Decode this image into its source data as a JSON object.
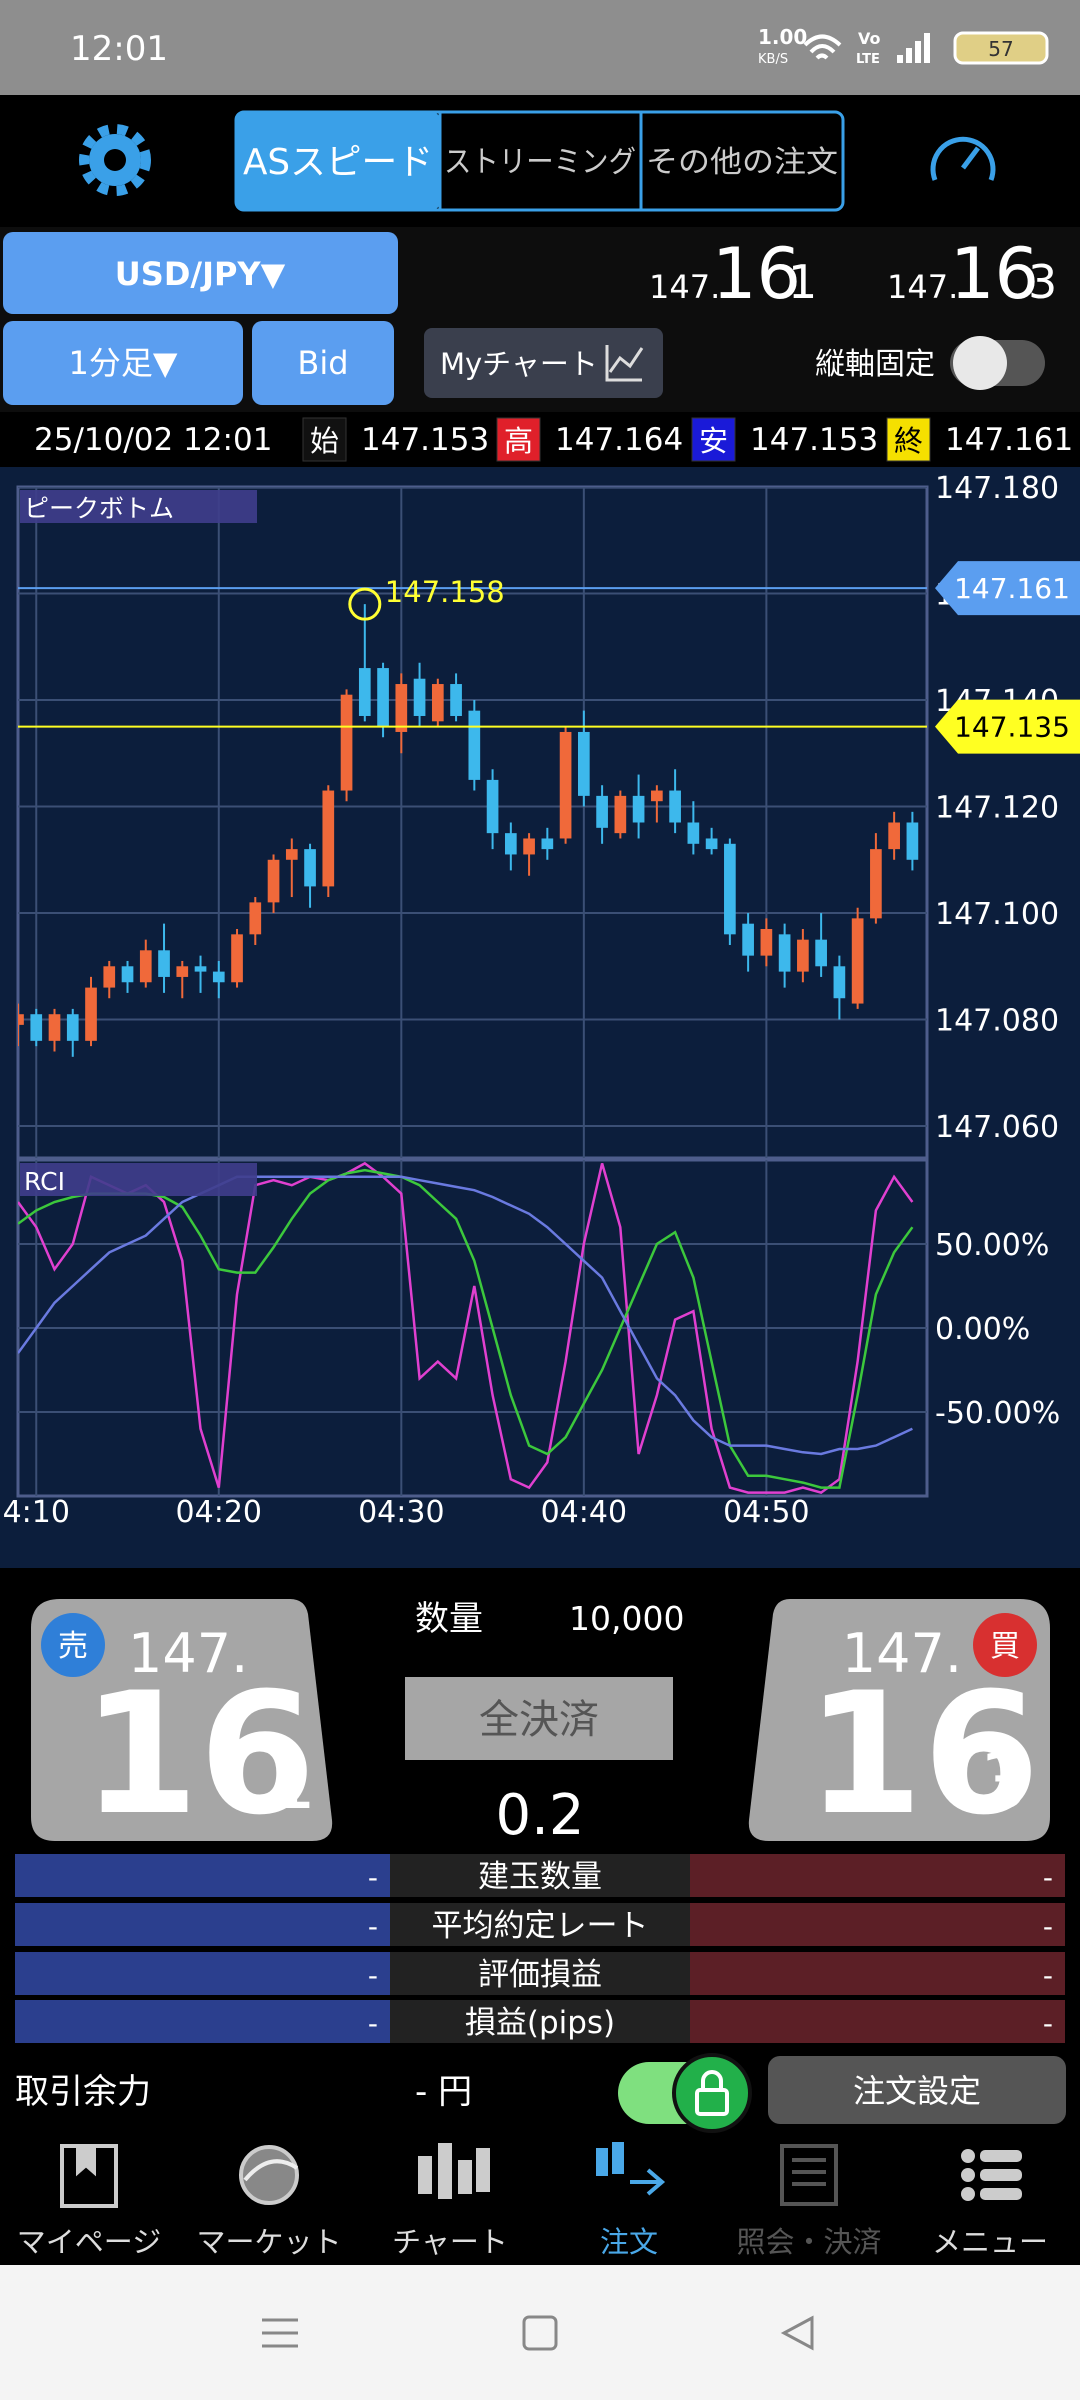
{
  "status_bar": {
    "time": "12:01",
    "speed": "1.00",
    "speed_unit": "KB/S",
    "volte": "Vo",
    "lte": "LTE",
    "battery": "57"
  },
  "tabs": [
    "ASスピード",
    "ストリーミング",
    "その他の注文"
  ],
  "pair": "USD/JPY▼",
  "bid_quote": {
    "prefix": "147.",
    "big": "16",
    "small": "1"
  },
  "ask_quote": {
    "prefix": "147.",
    "big": "16",
    "small": "3"
  },
  "controls": {
    "timeframe": "1分足▼",
    "price_type": "Bid",
    "my_chart": "Myチャート",
    "axis_lock": "縦軸固定"
  },
  "ohlc": {
    "datetime": "25/10/02 12:01",
    "items": [
      {
        "tag": "始",
        "value": "147.153"
      },
      {
        "tag": "高",
        "value": "147.164"
      },
      {
        "tag": "安",
        "value": "147.153"
      },
      {
        "tag": "終",
        "value": "147.161"
      }
    ]
  },
  "chart_data": [
    {
      "type": "candlestick",
      "title": "ピークボトム",
      "x": [
        9,
        10,
        11,
        12,
        13,
        14,
        15,
        16,
        17,
        18,
        19,
        20,
        21,
        22,
        23,
        24,
        25,
        26,
        27,
        28,
        29,
        30,
        31,
        32,
        33,
        34,
        35,
        36,
        37,
        38,
        39,
        40,
        41,
        42,
        43,
        44,
        45,
        46,
        47,
        48,
        49,
        50,
        51,
        52,
        53,
        54,
        55,
        56,
        57,
        58
      ],
      "open": [
        147.079,
        147.081,
        147.076,
        147.081,
        147.076,
        147.086,
        147.09,
        147.087,
        147.093,
        147.088,
        147.09,
        147.089,
        147.087,
        147.096,
        147.102,
        147.11,
        147.112,
        147.105,
        147.123,
        147.146,
        147.146,
        147.134,
        147.144,
        147.136,
        147.143,
        147.138,
        147.125,
        147.115,
        147.111,
        147.114,
        147.114,
        147.134,
        147.122,
        147.115,
        147.122,
        147.121,
        147.123,
        147.117,
        147.114,
        147.113,
        147.098,
        147.092,
        147.096,
        147.089,
        147.095,
        147.09,
        147.083,
        147.099,
        147.112,
        147.117
      ],
      "high": [
        147.083,
        147.082,
        147.082,
        147.082,
        147.088,
        147.091,
        147.091,
        147.095,
        147.098,
        147.091,
        147.092,
        147.091,
        147.097,
        147.103,
        147.111,
        147.114,
        147.113,
        147.124,
        147.142,
        147.158,
        147.147,
        147.145,
        147.147,
        147.144,
        147.145,
        147.14,
        147.127,
        147.117,
        147.115,
        147.116,
        147.135,
        147.138,
        147.124,
        147.123,
        147.126,
        147.124,
        147.127,
        147.121,
        147.116,
        147.114,
        147.1,
        147.099,
        147.098,
        147.097,
        147.1,
        147.092,
        147.101,
        147.115,
        147.119,
        147.119
      ],
      "low": [
        147.075,
        147.075,
        147.074,
        147.073,
        147.075,
        147.084,
        147.085,
        147.086,
        147.085,
        147.084,
        147.085,
        147.084,
        147.086,
        147.094,
        147.1,
        147.103,
        147.101,
        147.103,
        147.121,
        147.136,
        147.133,
        147.13,
        147.135,
        147.135,
        147.136,
        147.123,
        147.112,
        147.108,
        147.107,
        147.11,
        147.113,
        147.12,
        147.113,
        147.114,
        147.114,
        147.117,
        147.115,
        147.111,
        147.111,
        147.094,
        147.089,
        147.09,
        147.086,
        147.087,
        147.088,
        147.08,
        147.082,
        147.098,
        147.11,
        147.108
      ],
      "close": [
        147.081,
        147.076,
        147.081,
        147.076,
        147.086,
        147.09,
        147.087,
        147.093,
        147.088,
        147.09,
        147.089,
        147.087,
        147.096,
        147.102,
        147.11,
        147.112,
        147.105,
        147.123,
        147.141,
        147.137,
        147.135,
        147.143,
        147.137,
        147.143,
        147.137,
        147.125,
        147.115,
        147.111,
        147.114,
        147.112,
        147.134,
        147.122,
        147.116,
        147.122,
        147.117,
        147.123,
        147.117,
        147.113,
        147.112,
        147.096,
        147.092,
        147.097,
        147.089,
        147.095,
        147.09,
        147.084,
        147.099,
        147.112,
        147.117,
        147.11
      ],
      "up_color": "#f0693a",
      "down_color": "#3db8ec",
      "xlim": [
        9,
        58.8
      ],
      "ylim": [
        147.054,
        147.18
      ],
      "yticks": [
        {
          "value": 147.06,
          "label": "147.060"
        },
        {
          "value": 147.08,
          "label": "147.080"
        },
        {
          "value": 147.1,
          "label": "147.100"
        },
        {
          "value": 147.12,
          "label": "147.120"
        },
        {
          "value": 147.14,
          "label": "147.140"
        },
        {
          "value": 147.16,
          "label": "147.160"
        },
        {
          "value": 147.18,
          "label": "147.180"
        }
      ],
      "grid": true,
      "price_lines": [
        {
          "value": 147.161,
          "label": "147.161",
          "color": "#5b9ef0",
          "label_color": "#ffffff"
        },
        {
          "value": 147.135,
          "label": "147.135",
          "color": "#ffff22",
          "label_color": "#000000"
        }
      ],
      "peak": {
        "x": 28,
        "value": 147.158,
        "label": "147.158",
        "color": "#ffff33"
      }
    },
    {
      "type": "line",
      "title": "RCI",
      "x": [
        9,
        10,
        11,
        12,
        13,
        14,
        15,
        16,
        17,
        18,
        19,
        20,
        21,
        22,
        23,
        24,
        25,
        26,
        27,
        28,
        29,
        30,
        31,
        32,
        33,
        34,
        35,
        36,
        37,
        38,
        39,
        40,
        41,
        42,
        43,
        44,
        45,
        46,
        47,
        48,
        49,
        50,
        51,
        52,
        53,
        54,
        55,
        56,
        57,
        58
      ],
      "series": [
        {
          "color": "#e040d0",
          "values": [
            75,
            60,
            35,
            50,
            90,
            85,
            80,
            85,
            75,
            40,
            -60,
            -95,
            20,
            85,
            88,
            85,
            90,
            88,
            92,
            98,
            90,
            80,
            -30,
            -20,
            -30,
            25,
            -40,
            -90,
            -95,
            -80,
            -20,
            50,
            98,
            60,
            -75,
            -40,
            5,
            10,
            -60,
            -95,
            -98,
            -98,
            -98,
            -95,
            -98,
            -90,
            -20,
            70,
            90,
            75
          ]
        },
        {
          "color": "#3cc83c",
          "values": [
            62,
            70,
            75,
            78,
            80,
            80,
            80,
            80,
            78,
            72,
            55,
            35,
            33,
            33,
            48,
            65,
            80,
            88,
            92,
            94,
            92,
            90,
            85,
            75,
            65,
            40,
            0,
            -40,
            -70,
            -75,
            -65,
            -45,
            -25,
            0,
            25,
            50,
            57,
            30,
            -20,
            -70,
            -88,
            -88,
            -90,
            -92,
            -95,
            -95,
            -40,
            20,
            45,
            60
          ]
        },
        {
          "color": "#6a7ae0",
          "values": [
            -15,
            0,
            15,
            25,
            35,
            45,
            50,
            55,
            65,
            75,
            80,
            85,
            90,
            90,
            90,
            90,
            90,
            90,
            90,
            90,
            90,
            90,
            88,
            86,
            84,
            82,
            78,
            73,
            68,
            60,
            50,
            40,
            30,
            10,
            -10,
            -30,
            -40,
            -55,
            -65,
            -70,
            -70,
            -70,
            -72,
            -74,
            -75,
            -72,
            -72,
            -70,
            -65,
            -60
          ]
        }
      ],
      "xlim": [
        9,
        58.8
      ],
      "ylim": [
        -100,
        100
      ],
      "xticks": [
        {
          "value": 10,
          "label": "4:10"
        },
        {
          "value": 20,
          "label": "04:20"
        },
        {
          "value": 30,
          "label": "04:30"
        },
        {
          "value": 40,
          "label": "04:40"
        },
        {
          "value": 50,
          "label": "04:50"
        }
      ],
      "yticks": [
        {
          "value": 50,
          "label": "50.00%"
        },
        {
          "value": 0,
          "label": "0.00%"
        },
        {
          "value": -50,
          "label": "-50.00%"
        }
      ],
      "grid": true
    }
  ],
  "order": {
    "sell": "売",
    "buy": "買",
    "quantity_label": "数量",
    "quantity": "10,000",
    "close_all": "全決済",
    "spread": "0.2"
  },
  "positions": {
    "rows": [
      {
        "label": "建玉数量",
        "sell": "-",
        "buy": "-"
      },
      {
        "label": "平均約定レート",
        "sell": "-",
        "buy": "-"
      },
      {
        "label": "評価損益",
        "sell": "-",
        "buy": "-"
      },
      {
        "label": "損益(pips)",
        "sell": "-",
        "buy": "-"
      }
    ]
  },
  "margin": {
    "label": "取引余力",
    "value": "- 円",
    "settings": "注文設定"
  },
  "nav": [
    "マイページ",
    "マーケット",
    "チャート",
    "注文",
    "照会・決済",
    "メニュー"
  ]
}
